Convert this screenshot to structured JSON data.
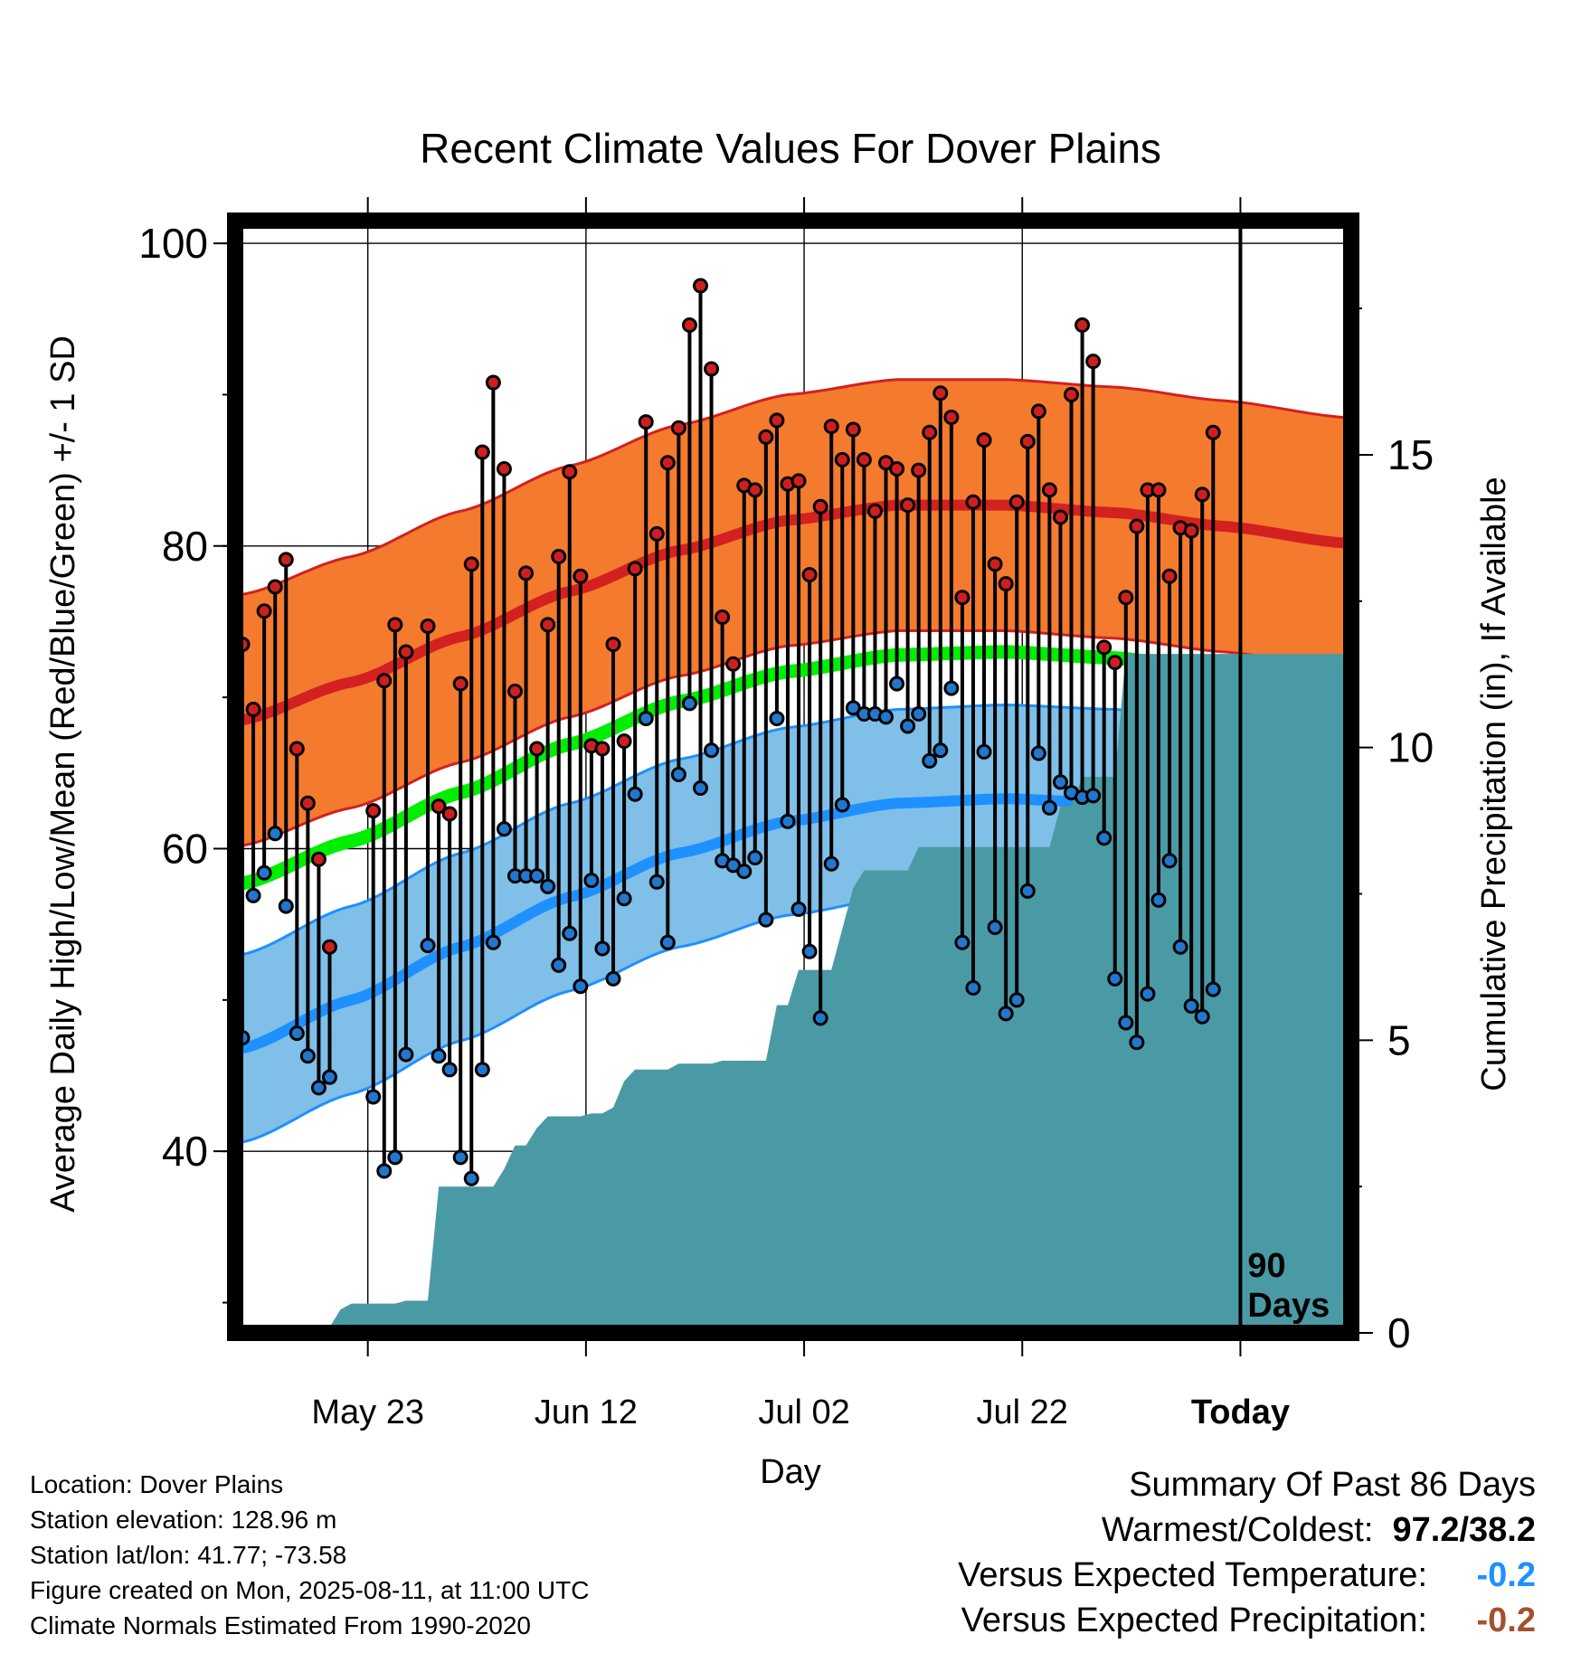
{
  "chart_data": {
    "type": "line",
    "title": "Recent Climate Values For Dover Plains",
    "xlabel": "Day",
    "ylabel": "Average Daily High/Low/Mean (Red/Blue/Green) +/- 1 SD",
    "y2label": "Cumulative Precipitation (in), If Available",
    "x_tick_labels": [
      "May 23",
      "Jun 12",
      "Jul 02",
      "Jul 22",
      "Today"
    ],
    "x_tick_days": [
      11.5,
      31.5,
      51.5,
      71.5,
      91.5
    ],
    "xlim": [
      0,
      101
    ],
    "ylim": [
      28,
      101.5
    ],
    "y_ticks": [
      40,
      60,
      80,
      100
    ],
    "y2lim": [
      0,
      19
    ],
    "y2_ticks": [
      0,
      5,
      10,
      15
    ],
    "marker_label": "90\nDays",
    "colors": {
      "high_band": "#f47a2e",
      "high_line": "#d32020",
      "low_band": "#7fbfe8",
      "low_line": "#1e90ff",
      "mean_line": "#00ee00",
      "precip": "#4a9aa5",
      "high_dot": "#cc2020",
      "low_dot": "#2277cc"
    },
    "normal_high": {
      "x": [
        0,
        10,
        20,
        30,
        40,
        50,
        60,
        70,
        80,
        90,
        101
      ],
      "mean": [
        68.5,
        71.0,
        74.0,
        77.0,
        79.7,
        81.7,
        82.7,
        82.7,
        82.2,
        81.3,
        80.2
      ],
      "sd": 8.3
    },
    "normal_low": {
      "x": [
        0,
        10,
        20,
        30,
        40,
        50,
        60,
        70,
        80,
        90,
        101
      ],
      "mean": [
        46.8,
        50.0,
        53.5,
        56.8,
        59.7,
        61.8,
        63.0,
        63.3,
        63.0,
        62.2,
        61.0
      ],
      "sd": 6.2
    },
    "normal_mean": {
      "x": [
        0,
        10,
        20,
        30,
        40,
        50,
        60,
        70,
        80,
        90,
        101
      ],
      "values": [
        57.7,
        60.5,
        63.7,
        66.9,
        69.7,
        71.7,
        72.8,
        73.0,
        72.6,
        71.7,
        70.6
      ]
    },
    "daily_high": [
      73.5,
      69.2,
      75.7,
      77.3,
      79.1,
      66.6,
      63.0,
      59.3,
      53.5,
      null,
      null,
      null,
      62.5,
      71.1,
      74.8,
      73.0,
      null,
      74.7,
      62.8,
      62.3,
      70.9,
      78.8,
      86.2,
      90.8,
      85.1,
      70.4,
      78.2,
      66.6,
      74.8,
      79.3,
      84.9,
      78.0,
      66.8,
      66.6,
      73.5,
      67.1,
      78.5,
      88.2,
      80.8,
      85.5,
      87.8,
      94.6,
      97.2,
      91.7,
      75.3,
      72.2,
      84.0,
      83.7,
      87.2,
      88.3,
      84.1,
      84.3,
      78.1,
      82.6,
      87.9,
      85.7,
      87.7,
      85.7,
      82.3,
      85.5,
      85.1,
      82.7,
      85.0,
      87.5,
      90.1,
      88.5,
      76.6,
      82.9,
      87.0,
      78.8,
      77.5,
      82.9,
      86.9,
      88.9,
      83.7,
      81.9,
      90.0,
      94.6,
      92.2,
      73.3,
      72.3,
      76.6,
      81.3,
      83.7,
      83.7,
      78.0,
      81.2,
      81.0,
      83.4,
      87.5
    ],
    "daily_low": [
      47.5,
      56.9,
      58.4,
      61.0,
      56.2,
      47.8,
      46.3,
      44.2,
      44.9,
      null,
      null,
      null,
      43.6,
      38.7,
      39.6,
      46.4,
      null,
      53.6,
      46.3,
      45.4,
      39.6,
      38.2,
      45.4,
      53.8,
      61.3,
      58.2,
      58.2,
      58.2,
      57.5,
      52.3,
      54.4,
      50.9,
      57.9,
      53.4,
      51.4,
      56.7,
      63.6,
      68.6,
      57.8,
      53.8,
      64.9,
      69.6,
      64.0,
      66.5,
      59.2,
      58.9,
      58.5,
      59.4,
      55.3,
      68.6,
      61.8,
      56.0,
      53.2,
      48.8,
      59.0,
      62.9,
      69.3,
      68.9,
      68.9,
      68.7,
      70.9,
      68.1,
      68.9,
      65.8,
      66.5,
      70.6,
      53.8,
      50.8,
      66.4,
      54.8,
      49.1,
      50.0,
      57.2,
      66.3,
      62.7,
      64.4,
      63.7,
      63.4,
      63.5,
      60.7,
      51.4,
      48.5,
      47.2,
      50.4,
      56.6,
      59.2,
      53.5,
      49.6,
      48.9,
      50.7
    ],
    "precip_cumulative": [
      0,
      0,
      0,
      0,
      0,
      0,
      0,
      0,
      0.1,
      0.4,
      0.5,
      0.5,
      0.5,
      0.5,
      0.5,
      0.55,
      0.55,
      0.55,
      2.5,
      2.5,
      2.5,
      2.5,
      2.5,
      2.5,
      2.8,
      3.2,
      3.2,
      3.5,
      3.7,
      3.7,
      3.7,
      3.7,
      3.75,
      3.75,
      3.85,
      4.3,
      4.5,
      4.5,
      4.5,
      4.5,
      4.6,
      4.6,
      4.6,
      4.6,
      4.65,
      4.65,
      4.65,
      4.65,
      4.65,
      5.6,
      5.6,
      6.2,
      6.2,
      6.2,
      6.2,
      6.9,
      7.6,
      7.9,
      7.9,
      7.9,
      7.9,
      7.9,
      8.3,
      8.3,
      8.3,
      8.3,
      8.3,
      8.3,
      8.3,
      8.3,
      8.3,
      8.3,
      8.3,
      8.3,
      8.3,
      9.0,
      9.0,
      9.5,
      9.5,
      9.5,
      9.5,
      11.6,
      11.6,
      11.6,
      11.6,
      11.6,
      11.6,
      11.6,
      11.6,
      11.6,
      11.6,
      11.6,
      11.6,
      11.6,
      11.6,
      11.6,
      11.6,
      11.6,
      11.6,
      11.6,
      11.6,
      11.6
    ]
  },
  "info": {
    "location": "Location: Dover Plains",
    "elevation": "Station elevation: 128.96 m",
    "latlon": "Station lat/lon: 41.77; -73.58",
    "created": "Figure created on Mon, 2025-08-11, at 11:00 UTC",
    "normals": "Climate Normals Estimated From 1990-2020"
  },
  "summary": {
    "title": "Summary Of Past 86 Days",
    "warm_cold_label": "Warmest/Coldest:",
    "warm_cold_value": "97.2/38.2",
    "temp_label": "Versus Expected Temperature:",
    "temp_value": "-0.2",
    "temp_color": "#1e90ff",
    "precip_label": "Versus Expected Precipitation:",
    "precip_value": "-0.2",
    "precip_color": "#a0522d"
  }
}
